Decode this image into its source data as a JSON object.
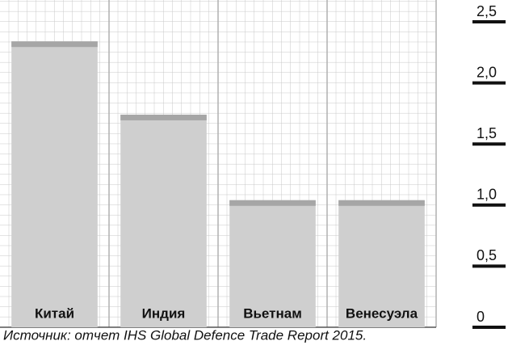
{
  "chart_data": {
    "type": "bar",
    "categories": [
      "Китай",
      "Индия",
      "Вьетнам",
      "Венесуэла"
    ],
    "values": [
      2.34,
      1.74,
      1.04,
      1.04
    ],
    "color": "#cfcfcf",
    "ylim": [
      0,
      2.5
    ],
    "yticks": [
      0,
      {
        "value": 0.5,
        "label": "0,5"
      },
      {
        "value": 1.0,
        "label": "1,0"
      },
      {
        "value": 1.5,
        "label": "1,5"
      },
      {
        "value": 2.0,
        "label": "2,0"
      },
      {
        "value": 2.5,
        "label": "2,5"
      }
    ],
    "grid": true,
    "source": "Источник: отчет IHS Global Defence Trade Report 2015."
  }
}
